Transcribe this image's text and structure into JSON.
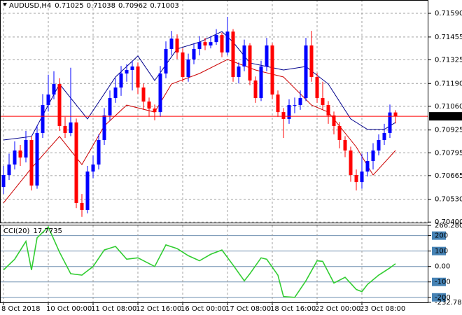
{
  "chart_data": [
    {
      "type": "candlestick",
      "title": "AUDUSD,H4",
      "categories": [
        "8 Oct 2018",
        null,
        null,
        null,
        null,
        null,
        null,
        null,
        "10 Oct 00:00",
        null,
        null,
        null,
        null,
        null,
        null,
        null,
        "11 Oct 08:00",
        null,
        null,
        null,
        null,
        null,
        null,
        null,
        "12 Oct 16:00",
        null,
        null,
        null,
        null,
        null,
        null,
        null,
        "16 Oct 00:00",
        null,
        null,
        null,
        null,
        null,
        null,
        null,
        "17 Oct 08:00",
        null,
        null,
        null,
        null,
        null,
        null,
        null,
        "18 Oct 16:00",
        null,
        null,
        null,
        null,
        null,
        null,
        null,
        "22 Oct 00:00",
        null,
        null,
        null,
        null,
        null,
        null,
        null,
        "23 Oct 08:00",
        null,
        null,
        null,
        null,
        null,
        null
      ],
      "ohlc": [
        [
          0.706,
          0.7072,
          0.7056,
          0.70668
        ],
        [
          0.70668,
          0.7079,
          0.7064,
          0.70728
        ],
        [
          0.70728,
          0.7086,
          0.707,
          0.70808
        ],
        [
          0.70808,
          0.7084,
          0.7072,
          0.70768
        ],
        [
          0.70768,
          0.7092,
          0.7074,
          0.70868
        ],
        [
          0.70868,
          0.7089,
          0.7058,
          0.70608
        ],
        [
          0.70608,
          0.7095,
          0.7059,
          0.70908
        ],
        [
          0.70908,
          0.7113,
          0.7088,
          0.71067
        ],
        [
          0.71067,
          0.7124,
          0.7103,
          0.71127
        ],
        [
          0.71127,
          0.7126,
          0.711,
          0.71187
        ],
        [
          0.71187,
          0.7122,
          0.7092,
          0.70948
        ],
        [
          0.70948,
          0.71,
          0.7088,
          0.70908
        ],
        [
          0.70908,
          0.7128,
          0.7089,
          0.70968
        ],
        [
          0.70968,
          0.7099,
          0.7048,
          0.70509
        ],
        [
          0.70509,
          0.7056,
          0.7043,
          0.70469
        ],
        [
          0.70469,
          0.7072,
          0.7045,
          0.70688
        ],
        [
          0.70688,
          0.7078,
          0.7065,
          0.70728
        ],
        [
          0.70728,
          0.709,
          0.707,
          0.70868
        ],
        [
          0.70868,
          0.7105,
          0.7084,
          0.71008
        ],
        [
          0.71008,
          0.7115,
          0.7098,
          0.71107
        ],
        [
          0.71107,
          0.7122,
          0.7108,
          0.71167
        ],
        [
          0.71167,
          0.7129,
          0.7112,
          0.71247
        ],
        [
          0.71247,
          0.713,
          0.712,
          0.71267
        ],
        [
          0.71267,
          0.7132,
          0.7115,
          0.71287
        ],
        [
          0.71287,
          0.7131,
          0.7113,
          0.71167
        ],
        [
          0.71167,
          0.7119,
          0.7104,
          0.71087
        ],
        [
          0.71087,
          0.7111,
          0.71,
          0.71047
        ],
        [
          0.71047,
          0.7107,
          0.7098,
          0.71027
        ],
        [
          0.71027,
          0.7129,
          0.71,
          0.71247
        ],
        [
          0.71247,
          0.7143,
          0.7122,
          0.71387
        ],
        [
          0.71387,
          0.7149,
          0.7135,
          0.71446
        ],
        [
          0.71446,
          0.7147,
          0.7133,
          0.71367
        ],
        [
          0.71367,
          0.7139,
          0.712,
          0.71227
        ],
        [
          0.71227,
          0.7136,
          0.712,
          0.71327
        ],
        [
          0.71327,
          0.7142,
          0.713,
          0.71387
        ],
        [
          0.71387,
          0.7146,
          0.7135,
          0.71426
        ],
        [
          0.71426,
          0.7145,
          0.7138,
          0.71407
        ],
        [
          0.71407,
          0.7146,
          0.7139,
          0.71426
        ],
        [
          0.71426,
          0.715,
          0.7141,
          0.71466
        ],
        [
          0.71466,
          0.7148,
          0.7134,
          0.71367
        ],
        [
          0.71367,
          0.7157,
          0.7135,
          0.71486
        ],
        [
          0.71486,
          0.715,
          0.712,
          0.71227
        ],
        [
          0.71227,
          0.7131,
          0.7119,
          0.71287
        ],
        [
          0.71287,
          0.7144,
          0.7126,
          0.71407
        ],
        [
          0.71407,
          0.7142,
          0.7118,
          0.71207
        ],
        [
          0.71207,
          0.7123,
          0.7108,
          0.71107
        ],
        [
          0.71107,
          0.7132,
          0.7109,
          0.71287
        ],
        [
          0.71287,
          0.7145,
          0.7126,
          0.71407
        ],
        [
          0.71407,
          0.7142,
          0.711,
          0.71127
        ],
        [
          0.71127,
          0.7115,
          0.71,
          0.71027
        ],
        [
          0.71027,
          0.7105,
          0.7088,
          0.70988
        ],
        [
          0.70988,
          0.711,
          0.7096,
          0.71067
        ],
        [
          0.71067,
          0.7111,
          0.7102,
          0.71067
        ],
        [
          0.71067,
          0.7115,
          0.7104,
          0.71107
        ],
        [
          0.71107,
          0.7145,
          0.7109,
          0.71407
        ],
        [
          0.71407,
          0.7149,
          0.712,
          0.71227
        ],
        [
          0.71227,
          0.7125,
          0.7108,
          0.71107
        ],
        [
          0.71107,
          0.712,
          0.7104,
          0.71067
        ],
        [
          0.71067,
          0.7109,
          0.7096,
          0.71008
        ],
        [
          0.71008,
          0.7103,
          0.709,
          0.70948
        ],
        [
          0.70948,
          0.7097,
          0.7082,
          0.70868
        ],
        [
          0.70868,
          0.7089,
          0.7077,
          0.70808
        ],
        [
          0.70808,
          0.7083,
          0.7063,
          0.70668
        ],
        [
          0.70668,
          0.707,
          0.7058,
          0.70628
        ],
        [
          0.70628,
          0.7079,
          0.7059,
          0.70688
        ],
        [
          0.70688,
          0.708,
          0.7066,
          0.70748
        ],
        [
          0.70748,
          0.7085,
          0.707,
          0.70808
        ],
        [
          0.70808,
          0.709,
          0.7078,
          0.70868
        ],
        [
          0.70868,
          0.7096,
          0.7084,
          0.70908
        ],
        [
          0.70908,
          0.7107,
          0.7088,
          0.71025
        ],
        [
          0.71025,
          0.71038,
          0.70962,
          0.71003
        ]
      ],
      "up_color": "#0000ff",
      "down_color": "#ff0000",
      "lines": [
        {
          "color": "#00008b",
          "x": [
            0,
            5,
            10,
            15,
            20,
            24,
            27,
            31,
            35,
            39,
            41,
            44,
            47,
            50,
            54,
            58,
            62,
            65,
            68,
            70
          ],
          "values": [
            0.70868,
            0.70888,
            0.71187,
            0.70988,
            0.71227,
            0.71347,
            0.71207,
            0.71387,
            0.71426,
            0.71486,
            0.71426,
            0.71307,
            0.71287,
            0.71267,
            0.71287,
            0.71187,
            0.70988,
            0.70928,
            0.70928,
            0.70968
          ]
        },
        {
          "color": "#cc0000",
          "x": [
            0,
            5,
            10,
            14,
            18,
            22,
            27,
            30,
            35,
            40,
            45,
            50,
            55,
            58,
            63,
            66,
            70
          ],
          "values": [
            0.70509,
            0.70708,
            0.70888,
            0.70728,
            0.70948,
            0.71067,
            0.71027,
            0.71187,
            0.71247,
            0.71327,
            0.71267,
            0.71227,
            0.71067,
            0.71027,
            0.70828,
            0.70668,
            0.70808
          ]
        }
      ],
      "last_color": "#ff0000",
      "ylim": [
        0.70397,
        0.71666
      ],
      "yticks": [
        {
          "value": 0.7159,
          "label": "0.71590"
        },
        0.71455,
        0.71325,
        {
          "value": 0.7119,
          "label": "0.71190"
        },
        {
          "value": 0.7106,
          "label": "0.71060"
        },
        0.70925,
        0.70795,
        0.70665,
        {
          "value": 0.7053,
          "label": "0.70530"
        },
        {
          "value": 0.704,
          "label": "0.70400"
        }
      ],
      "grid": true
    },
    {
      "type": "line",
      "title": "CCI(20)",
      "x": [
        0,
        2,
        4,
        5,
        6,
        8,
        10,
        12,
        14,
        16,
        18,
        20,
        22,
        24,
        27,
        29,
        31,
        33,
        35,
        37,
        39,
        41,
        43,
        44,
        46,
        47,
        49,
        50,
        52,
        54,
        56,
        57,
        59,
        61,
        63,
        64,
        65,
        67,
        69,
        70
      ],
      "values": [
        -23,
        47,
        163,
        -23,
        186,
        256,
        93,
        -47,
        -56,
        0,
        107,
        130,
        47,
        56,
        0,
        140,
        116,
        70,
        37,
        79,
        107,
        9,
        -93,
        -47,
        56,
        47,
        -56,
        -195,
        -200,
        -93,
        37,
        33,
        -107,
        -70,
        -149,
        -163,
        -116,
        -56,
        -9,
        17.7735
      ],
      "color": "#32cd32",
      "ylim": [
        -232.7801,
        266.2805
      ],
      "yticks": [
        266.2805,
        200,
        100,
        {
          "value": 0,
          "label": "0.00"
        },
        -100,
        -200,
        -232.7801
      ],
      "grid": true
    }
  ]
}
